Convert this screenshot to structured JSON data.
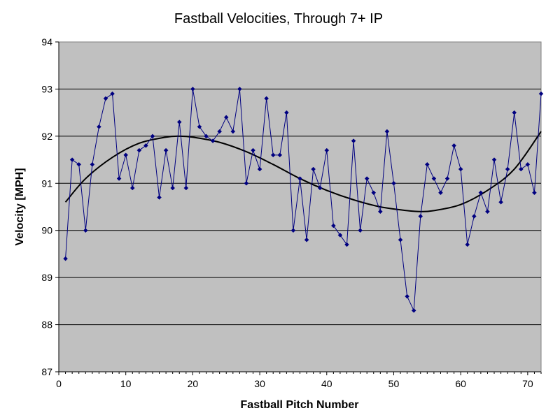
{
  "chart_data": {
    "type": "line",
    "title": "Fastball Velocities, Through 7+ IP",
    "xlabel": "Fastball Pitch Number",
    "ylabel": "Velocity [MPH]",
    "xlim": [
      0,
      72
    ],
    "ylim": [
      87,
      94
    ],
    "x_ticks": [
      "0",
      "10",
      "20",
      "30",
      "40",
      "50",
      "60",
      "70"
    ],
    "y_ticks": [
      "87",
      "88",
      "89",
      "90",
      "91",
      "92",
      "93",
      "94"
    ],
    "grid": "horizontal",
    "legend": "none",
    "colors": {
      "plot_background": "#c0c0c0",
      "series": "#000080",
      "trendline": "#000000",
      "gridline": "#000000"
    },
    "series": [
      {
        "marker": "diamond",
        "x": [
          1,
          2,
          3,
          4,
          5,
          6,
          7,
          8,
          9,
          10,
          11,
          12,
          13,
          14,
          15,
          16,
          17,
          18,
          19,
          20,
          21,
          22,
          23,
          24,
          25,
          26,
          27,
          28,
          29,
          30,
          31,
          32,
          33,
          34,
          35,
          36,
          37,
          38,
          39,
          40,
          41,
          42,
          43,
          44,
          45,
          46,
          47,
          48,
          49,
          50,
          51,
          52,
          53,
          54,
          55,
          56,
          57,
          58,
          59,
          60,
          61,
          62,
          63,
          64,
          65,
          66,
          67,
          68,
          69,
          70,
          71,
          72
        ],
        "values": [
          89.4,
          91.5,
          91.4,
          90.0,
          91.4,
          92.2,
          92.8,
          92.9,
          91.1,
          91.6,
          90.9,
          91.7,
          91.8,
          92.0,
          90.7,
          91.7,
          90.9,
          92.3,
          90.9,
          93.0,
          92.2,
          92.0,
          91.9,
          92.1,
          92.4,
          92.1,
          93.0,
          91.0,
          91.7,
          91.3,
          92.8,
          91.6,
          91.6,
          92.5,
          90.0,
          91.1,
          89.8,
          91.3,
          90.9,
          91.7,
          90.1,
          89.9,
          89.7,
          91.9,
          90.0,
          91.1,
          90.8,
          90.4,
          92.1,
          91.0,
          89.8,
          88.6,
          88.3,
          90.3,
          91.4,
          91.1,
          90.8,
          91.1,
          91.8,
          91.3,
          89.7,
          90.3,
          90.8,
          90.4,
          91.5,
          90.6,
          91.3,
          92.5,
          91.3,
          91.4,
          90.8,
          92.9
        ]
      }
    ],
    "trendline": {
      "type": "polynomial",
      "x": [
        1,
        4,
        8,
        12,
        16,
        18,
        20,
        24,
        28,
        32,
        36,
        40,
        44,
        48,
        52,
        54,
        56,
        60,
        64,
        68,
        72
      ],
      "values": [
        90.6,
        91.1,
        91.55,
        91.85,
        91.98,
        92.0,
        91.98,
        91.87,
        91.67,
        91.4,
        91.1,
        90.85,
        90.65,
        90.5,
        90.42,
        90.4,
        90.42,
        90.55,
        90.85,
        91.3,
        92.1
      ]
    }
  }
}
